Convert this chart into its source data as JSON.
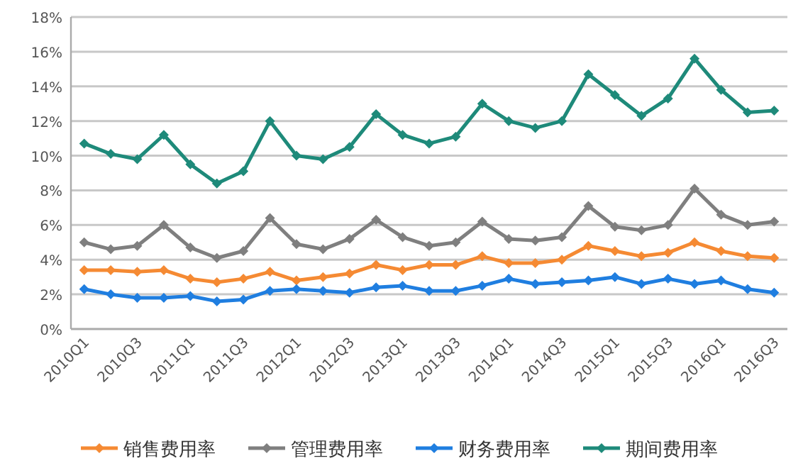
{
  "chart_data": {
    "type": "line",
    "categories": [
      "2010Q1",
      null,
      "2010Q3",
      null,
      "2011Q1",
      null,
      "2011Q3",
      null,
      "2012Q1",
      null,
      "2012Q3",
      null,
      "2013Q1",
      null,
      "2013Q3",
      null,
      "2014Q1",
      null,
      "2014Q3",
      null,
      "2015Q1",
      null,
      "2015Q3",
      null,
      "2016Q1",
      null,
      "2016Q3"
    ],
    "series": [
      {
        "name": "销售费用率",
        "color": "#f58a33",
        "values": [
          3.4,
          3.4,
          3.3,
          3.4,
          2.9,
          2.7,
          2.9,
          3.3,
          2.8,
          3.0,
          3.2,
          3.7,
          3.4,
          3.7,
          3.7,
          4.2,
          3.8,
          3.8,
          4.0,
          4.8,
          4.5,
          4.2,
          4.4,
          5.0,
          4.5,
          4.2,
          4.1
        ]
      },
      {
        "name": "管理费用率",
        "color": "#7f7f7f",
        "values": [
          5.0,
          4.6,
          4.8,
          6.0,
          4.7,
          4.1,
          4.5,
          6.4,
          4.9,
          4.6,
          5.2,
          6.3,
          5.3,
          4.8,
          5.0,
          6.2,
          5.2,
          5.1,
          5.3,
          7.1,
          5.9,
          5.7,
          6.0,
          8.1,
          6.6,
          6.0,
          6.2
        ]
      },
      {
        "name": "财务费用率",
        "color": "#1f7ee0",
        "values": [
          2.3,
          2.0,
          1.8,
          1.8,
          1.9,
          1.6,
          1.7,
          2.2,
          2.3,
          2.2,
          2.1,
          2.4,
          2.5,
          2.2,
          2.2,
          2.5,
          2.9,
          2.6,
          2.7,
          2.8,
          3.0,
          2.6,
          2.9,
          2.6,
          2.8,
          2.3,
          2.1
        ]
      },
      {
        "name": "期间费用率",
        "color": "#1e8a7a",
        "values": [
          10.7,
          10.1,
          9.8,
          11.2,
          9.5,
          8.4,
          9.1,
          12.0,
          10.0,
          9.8,
          10.5,
          12.4,
          11.2,
          10.7,
          11.1,
          13.0,
          12.0,
          11.6,
          12.0,
          14.7,
          13.5,
          12.3,
          13.3,
          15.6,
          13.8,
          12.5,
          12.6
        ]
      }
    ],
    "ylim": [
      0,
      18
    ],
    "yticks": [
      {
        "value": 0,
        "label": "0%"
      },
      {
        "value": 2,
        "label": "2%"
      },
      {
        "value": 4,
        "label": "4%"
      },
      {
        "value": 6,
        "label": "6%"
      },
      {
        "value": 8,
        "label": "8%"
      },
      {
        "value": 10,
        "label": "10%"
      },
      {
        "value": 12,
        "label": "12%"
      },
      {
        "value": 14,
        "label": "14%"
      },
      {
        "value": 16,
        "label": "16%"
      },
      {
        "value": 18,
        "label": "18%"
      }
    ],
    "grid": "y",
    "legend": "bottom",
    "marker": "diamond",
    "line_style": "solid"
  }
}
